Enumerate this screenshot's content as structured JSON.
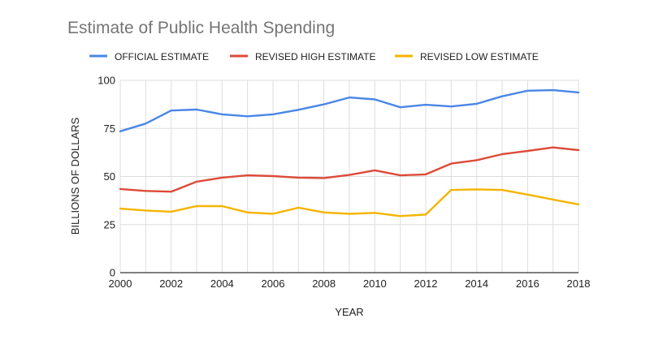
{
  "chart_data": {
    "type": "line",
    "title": "Estimate of Public Health Spending",
    "xlabel": "YEAR",
    "ylabel": "BILLIONS OF DOLLARS",
    "x": [
      2000,
      2001,
      2002,
      2003,
      2004,
      2005,
      2006,
      2007,
      2008,
      2009,
      2010,
      2011,
      2012,
      2013,
      2014,
      2015,
      2016,
      2017,
      2018
    ],
    "x_ticks": [
      "2000",
      "2002",
      "2004",
      "2006",
      "2008",
      "2010",
      "2012",
      "2014",
      "2016",
      "2018"
    ],
    "xlim": [
      2000,
      2018
    ],
    "y_ticks": [
      "0",
      "25",
      "50",
      "75",
      "100"
    ],
    "ylim": [
      0,
      100
    ],
    "grid": true,
    "legend_position": "top",
    "series": [
      {
        "name": "OFFICIAL ESTIMATE",
        "color": "#4a86e8",
        "values": [
          73.5,
          77.5,
          84.3,
          84.8,
          82.3,
          81.3,
          82.3,
          84.7,
          87.5,
          91.1,
          90.1,
          86.0,
          87.3,
          86.4,
          87.8,
          91.7,
          94.6,
          94.9,
          93.7
        ]
      },
      {
        "name": "REVISED HIGH ESTIMATE",
        "color": "#dd4b39",
        "values": [
          43.5,
          42.5,
          42.1,
          47.3,
          49.4,
          50.6,
          50.2,
          49.4,
          49.2,
          50.8,
          53.2,
          50.6,
          51.1,
          56.7,
          58.5,
          61.6,
          63.3,
          65.1,
          63.7
        ]
      },
      {
        "name": "REVISED LOW ESTIMATE",
        "color": "#f4b400",
        "values": [
          33.3,
          32.3,
          31.7,
          34.6,
          34.6,
          31.3,
          30.6,
          33.8,
          31.3,
          30.6,
          31.1,
          29.4,
          30.2,
          43.0,
          43.3,
          43.0,
          40.6,
          38.0,
          35.5
        ]
      }
    ]
  }
}
